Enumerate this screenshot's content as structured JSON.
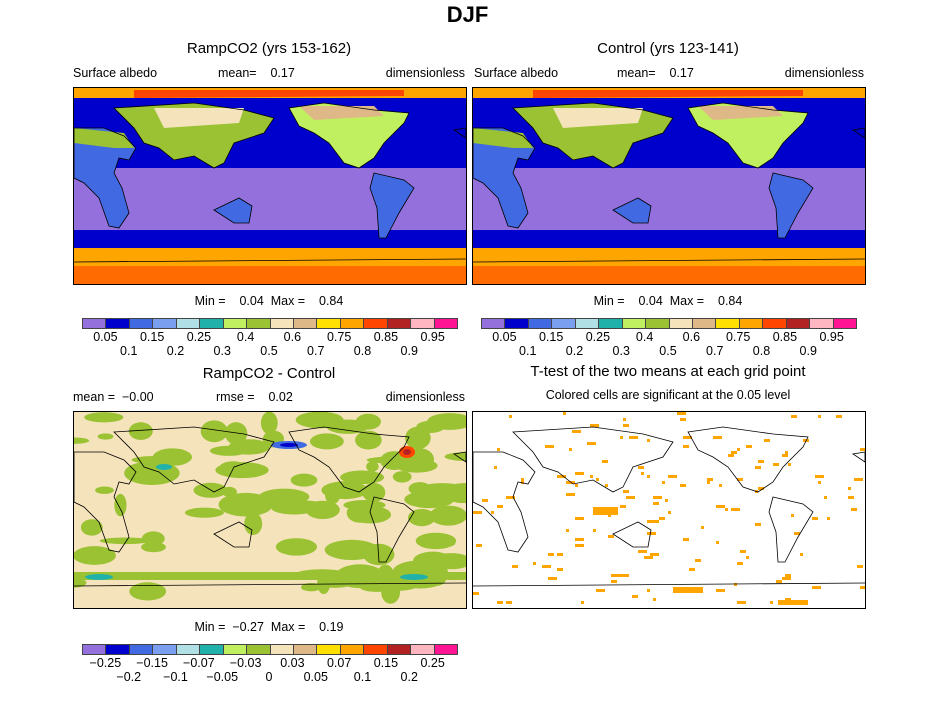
{
  "title": "DJF",
  "panels": [
    {
      "title": "RampCO2 (yrs 153-162)",
      "variable": "Surface albedo",
      "stat": "mean=    0.17",
      "units": "dimensionless",
      "minmax": "Min =    0.04  Max =    0.84"
    },
    {
      "title": "Control (yrs 123-141)",
      "variable": "Surface albedo",
      "stat": "mean=    0.17",
      "units": "dimensionless",
      "minmax": "Min =    0.04  Max =    0.84"
    },
    {
      "title": "RampCO2 - Control",
      "variable": "mean =  −0.00",
      "stat": "rmse =    0.02",
      "units": "dimensionless",
      "minmax": "Min =  −0.27  Max =    0.19"
    },
    {
      "title": "T-test of the two means at each grid point",
      "subtitle": "Colored cells are significant at the 0.05 level"
    }
  ],
  "colorbar": {
    "colors": [
      "#9370db",
      "#0000cd",
      "#4169e1",
      "#7b9ff0",
      "#b0e0e6",
      "#20b2aa",
      "#c0f060",
      "#9ac232",
      "#f5e3bb",
      "#deb887",
      "#ffe000",
      "#ffa500",
      "#ff4500",
      "#b22222",
      "#ffb6c1",
      "#ff1493"
    ],
    "abs_labels": [
      "0.05",
      "0.1",
      "0.15",
      "0.2",
      "0.25",
      "0.3",
      "0.4",
      "0.5",
      "0.6",
      "0.7",
      "0.75",
      "0.8",
      "0.85",
      "0.9",
      "0.95"
    ],
    "diff_labels": [
      "−0.25",
      "−0.2",
      "−0.15",
      "−0.1",
      "−0.07",
      "−0.05",
      "−0.03",
      "0",
      "0.03",
      "0.05",
      "0.07",
      "0.1",
      "0.15",
      "0.2",
      "0.25"
    ]
  },
  "significance_color": "#ffa500"
}
